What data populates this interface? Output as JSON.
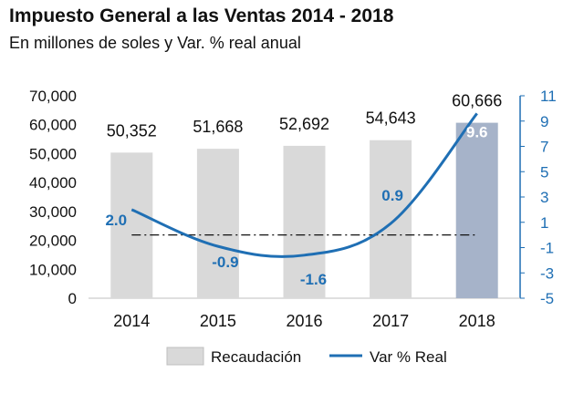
{
  "chart_data": {
    "type": "bar",
    "title": "Impuesto General a las Ventas 2014 - 2018",
    "subtitle": "En millones de soles y Var. % real anual",
    "categories": [
      "2014",
      "2015",
      "2016",
      "2017",
      "2018"
    ],
    "series": [
      {
        "name": "Recaudación",
        "type": "bar",
        "axis": "left",
        "values": [
          50352,
          51668,
          52692,
          54643,
          60666
        ],
        "labels": [
          "50,352",
          "51,668",
          "52,692",
          "54,643",
          "60,666"
        ]
      },
      {
        "name": "Var % Real",
        "type": "line",
        "axis": "right",
        "values": [
          2.0,
          -0.9,
          -1.6,
          0.9,
          9.6
        ],
        "labels": [
          "2.0",
          "-0.9",
          "-1.6",
          "0.9",
          "9.6"
        ]
      }
    ],
    "y_left": {
      "min": 0,
      "max": 70000,
      "ticks": [
        "0",
        "10,000",
        "20,000",
        "30,000",
        "40,000",
        "50,000",
        "60,000",
        "70,000"
      ]
    },
    "y_right": {
      "min": -5,
      "max": 11,
      "ticks": [
        "-5",
        "-3",
        "-1",
        "1",
        "3",
        "5",
        "7",
        "9",
        "11"
      ]
    },
    "reference_line": {
      "axis": "right",
      "value": 0,
      "style": "dash-dot"
    },
    "highlight_category": "2018",
    "colors": {
      "bar": "#d9d9d9",
      "bar_highlight": "#a6b3c9",
      "line": "#1f6fb4",
      "axis_right": "#1f6fb4"
    },
    "legend": [
      "Recaudación",
      "Var % Real"
    ]
  }
}
